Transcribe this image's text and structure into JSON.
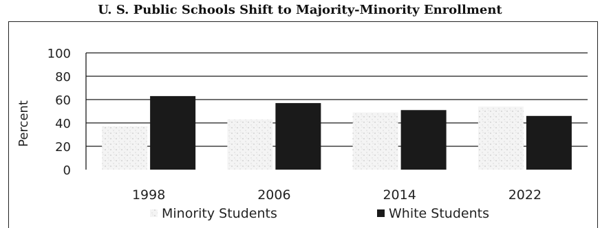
{
  "chart_data": {
    "type": "bar",
    "title": "U. S. Public Schools Shift to Majority-Minority Enrollment",
    "ylabel": "Percent",
    "xlabel": "",
    "ylim": [
      0,
      100
    ],
    "yticks": [
      0,
      20,
      40,
      60,
      80,
      100
    ],
    "categories": [
      "1998",
      "2006",
      "2014",
      "2022"
    ],
    "series": [
      {
        "name": "Minority Students",
        "values": [
          37,
          43,
          49,
          54
        ],
        "color": "#f2f2f2"
      },
      {
        "name": "White Students",
        "values": [
          63,
          57,
          51,
          46
        ],
        "color": "#1a1a1a"
      }
    ],
    "grid": true,
    "legend_position": "bottom"
  }
}
